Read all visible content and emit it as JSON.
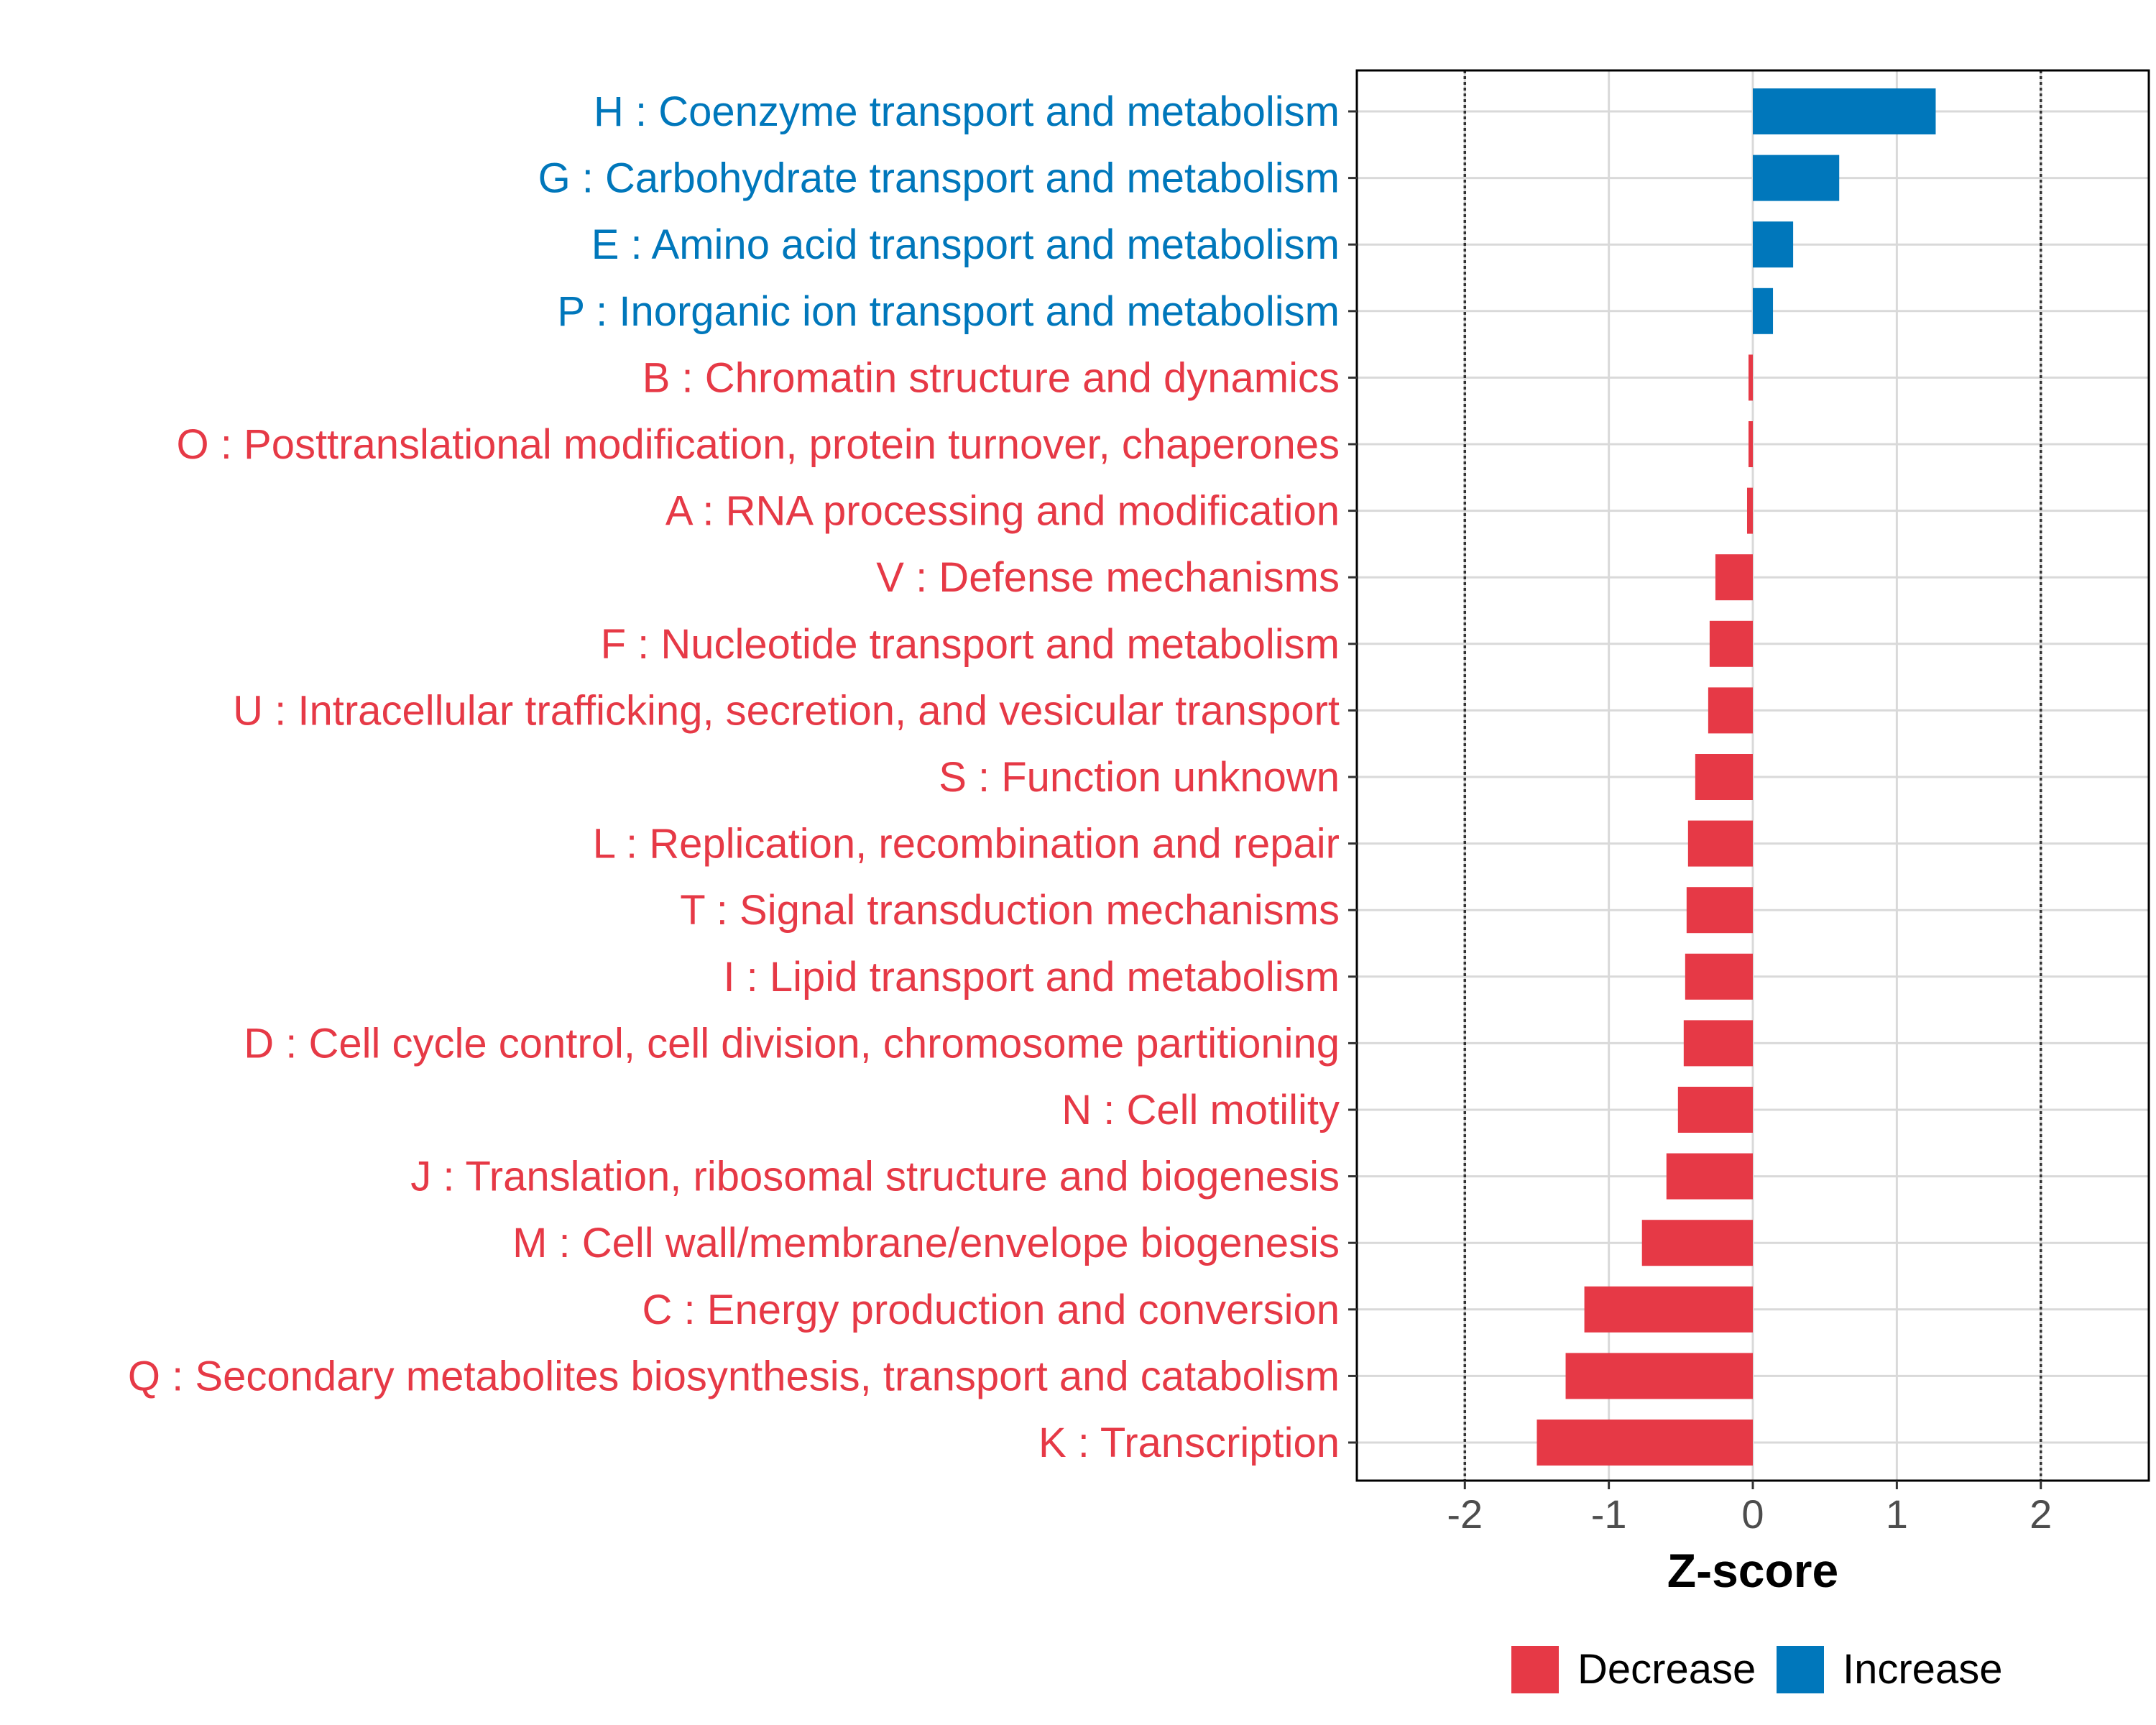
{
  "chart_data": {
    "type": "bar",
    "orientation": "horizontal",
    "title": "",
    "xlabel": "Z-score",
    "ylabel": "",
    "xlim": [
      -2.75,
      2.75
    ],
    "xticks": [
      -2,
      -1,
      0,
      1,
      2
    ],
    "reference_lines": [
      -2,
      2
    ],
    "grid": true,
    "legend_position": "bottom",
    "categories": [
      "H : Coenzyme transport and metabolism",
      "G : Carbohydrate transport and metabolism",
      "E : Amino acid transport and metabolism",
      "P : Inorganic ion transport and metabolism",
      "B : Chromatin structure and dynamics",
      "O : Posttranslational modification, protein turnover, chaperones",
      "A : RNA processing and modification",
      "V : Defense mechanisms",
      "F : Nucleotide transport and metabolism",
      "U : Intracellular trafficking, secretion, and vesicular transport",
      "S : Function unknown",
      "L : Replication, recombination and repair",
      "T : Signal transduction mechanisms",
      "I : Lipid transport and metabolism",
      "D : Cell cycle control, cell division, chromosome partitioning",
      "N : Cell motility",
      "J : Translation, ribosomal structure and biogenesis",
      "M : Cell wall/membrane/envelope biogenesis",
      "C : Energy production and conversion",
      "Q : Secondary metabolites biosynthesis, transport and catabolism",
      "K : Transcription"
    ],
    "values": [
      1.27,
      0.6,
      0.28,
      0.14,
      -0.03,
      -0.03,
      -0.04,
      -0.26,
      -0.3,
      -0.31,
      -0.4,
      -0.45,
      -0.46,
      -0.47,
      -0.48,
      -0.52,
      -0.6,
      -0.77,
      -1.17,
      -1.3,
      -1.5
    ],
    "legend": [
      {
        "name": "Decrease",
        "color": "#E63946"
      },
      {
        "name": "Increase",
        "color": "#0077BB"
      }
    ]
  }
}
